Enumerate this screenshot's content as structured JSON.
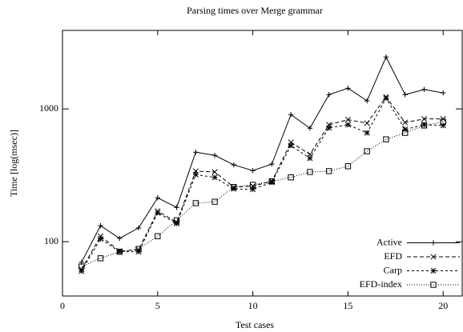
{
  "chart_data": {
    "type": "line",
    "title": "Parsing times over Merge grammar",
    "xlabel": "Test cases",
    "ylabel": "Time [log(msec)]",
    "x": [
      1,
      2,
      3,
      4,
      5,
      6,
      7,
      8,
      9,
      10,
      11,
      12,
      13,
      14,
      15,
      16,
      17,
      18,
      19,
      20
    ],
    "series": [
      {
        "name": "Active",
        "color": "#000000",
        "dash": "none",
        "marker": "plus",
        "values": [
          70,
          132,
          106,
          127,
          214,
          181,
          472,
          447,
          379,
          343,
          384,
          906,
          715,
          1280,
          1430,
          1150,
          2460,
          1280,
          1400,
          1320
        ]
      },
      {
        "name": "EFD",
        "color": "#000000",
        "dash": "5,3",
        "marker": "cross",
        "values": [
          62,
          110,
          85,
          87,
          170,
          140,
          340,
          335,
          258,
          262,
          285,
          560,
          455,
          760,
          830,
          780,
          1230,
          790,
          840,
          840
        ]
      },
      {
        "name": "Carp",
        "color": "#000000",
        "dash": "3,3",
        "marker": "star",
        "values": [
          60,
          105,
          84,
          84,
          165,
          137,
          320,
          305,
          250,
          248,
          280,
          530,
          425,
          720,
          760,
          660,
          1200,
          700,
          760,
          750
        ]
      },
      {
        "name": "EFD-index",
        "color": "#000000",
        "dash": "1,2",
        "marker": "square",
        "values": [
          65,
          75,
          84,
          88,
          110,
          145,
          195,
          200,
          258,
          268,
          285,
          305,
          335,
          340,
          370,
          480,
          590,
          660,
          750,
          800
        ]
      }
    ],
    "xlim": [
      0,
      21
    ],
    "xticks": [
      0,
      5,
      10,
      15,
      20
    ],
    "ylim": [
      39,
      3900
    ],
    "yticks": [
      100,
      1000
    ],
    "log_y": true,
    "legend": "lower right"
  }
}
